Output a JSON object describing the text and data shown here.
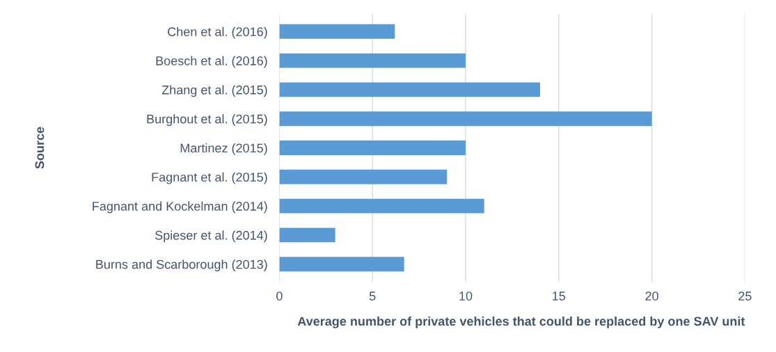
{
  "chart_data": {
    "type": "bar",
    "orientation": "horizontal",
    "categories": [
      "Chen et al. (2016)",
      "Boesch et al. (2016)",
      "Zhang et al. (2015)",
      "Burghout et al. (2015)",
      "Martinez (2015)",
      "Fagnant et al. (2015)",
      "Fagnant and Kockelman (2014)",
      "Spieser et al. (2014)",
      "Burns and Scarborough (2013)"
    ],
    "values": [
      6.2,
      10,
      14,
      20,
      10,
      9,
      11,
      3,
      6.7
    ],
    "color": "#5b9bd5",
    "xlim": [
      0,
      25
    ],
    "xticks": [
      0,
      5,
      10,
      15,
      20,
      25
    ],
    "xlabel": "Average number of private vehicles that could be replaced by one SAV unit",
    "ylabel": "Source",
    "grid": "x"
  }
}
